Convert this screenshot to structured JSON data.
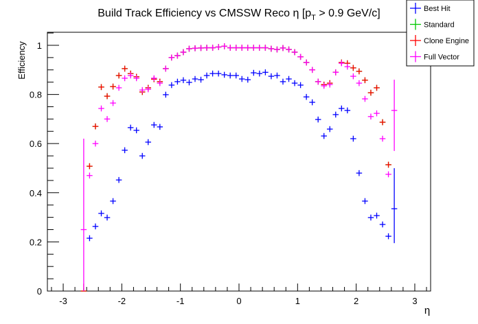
{
  "chart_data": {
    "type": "scatter",
    "title": "Build Track Efficiency vs CMSSW Reco η [p",
    "title_sub": "T",
    "title_tail": " > 0.9 GeV/c]",
    "xlabel": "η",
    "ylabel": "Efficiency",
    "xlim": [
      -3.27,
      3.27
    ],
    "ylim": [
      0,
      1.053
    ],
    "xticks": [
      -3,
      -2,
      -1,
      0,
      1,
      2,
      3
    ],
    "xtick_labels": [
      "-3",
      "-2",
      "-1",
      "0",
      "1",
      "2",
      "3"
    ],
    "yticks": [
      0,
      0.2,
      0.4,
      0.6,
      0.8,
      1
    ],
    "ytick_labels": [
      "0",
      "0.2",
      "0.4",
      "0.6",
      "0.8",
      "1"
    ],
    "grid": false,
    "legend_position": "top-right",
    "bin_width": 0.1,
    "x": [
      -2.65,
      -2.55,
      -2.45,
      -2.35,
      -2.25,
      -2.15,
      -2.05,
      -1.95,
      -1.85,
      -1.75,
      -1.65,
      -1.55,
      -1.45,
      -1.35,
      -1.25,
      -1.15,
      -1.05,
      -0.95,
      -0.85,
      -0.75,
      -0.65,
      -0.55,
      -0.45,
      -0.35,
      -0.25,
      -0.15,
      -0.05,
      0.05,
      0.15,
      0.25,
      0.35,
      0.45,
      0.55,
      0.65,
      0.75,
      0.85,
      0.95,
      1.05,
      1.15,
      1.25,
      1.35,
      1.45,
      1.55,
      1.65,
      1.75,
      1.85,
      1.95,
      2.05,
      2.15,
      2.25,
      2.35,
      2.45,
      2.55,
      2.65
    ],
    "series": [
      {
        "name": "Best Hit",
        "color": "#0000ff",
        "values": [
          null,
          0.215,
          0.263,
          0.316,
          0.299,
          0.366,
          0.452,
          0.573,
          0.665,
          0.654,
          0.55,
          0.606,
          0.676,
          0.668,
          0.799,
          0.838,
          0.852,
          0.858,
          0.849,
          0.863,
          0.86,
          0.877,
          0.885,
          0.885,
          0.88,
          0.877,
          0.877,
          0.863,
          0.86,
          0.888,
          0.885,
          0.89,
          0.874,
          0.877,
          0.852,
          0.863,
          0.846,
          0.838,
          0.79,
          0.768,
          0.698,
          0.631,
          0.659,
          0.718,
          0.743,
          0.735,
          0.62,
          0.48,
          0.366,
          0.299,
          0.307,
          0.271,
          0.223,
          0.335
        ],
        "big_errors": {
          "2.65": [
            0.195,
            0.5
          ]
        }
      },
      {
        "name": "Standard",
        "color": "#00c800",
        "values": [
          0,
          0.508,
          0.67,
          0.83,
          0.793,
          0.832,
          0.877,
          0.905,
          0.885,
          0.872,
          0.81,
          0.827,
          0.862,
          0.852,
          0.905,
          0.95,
          0.958,
          0.972,
          0.986,
          0.988,
          0.989,
          0.99,
          0.99,
          0.993,
          0.996,
          0.99,
          0.99,
          0.99,
          0.99,
          0.99,
          0.99,
          0.99,
          0.986,
          0.983,
          0.989,
          0.983,
          0.972,
          0.953,
          0.93,
          0.9,
          0.852,
          0.84,
          0.846,
          0.89,
          0.93,
          0.927,
          0.908,
          0.894,
          0.858,
          0.807,
          0.827,
          0.687,
          0.514,
          null
        ],
        "big_errors": {}
      },
      {
        "name": "Clone Engine",
        "color": "#ff0000",
        "values": [
          0,
          0.508,
          0.67,
          0.83,
          0.793,
          0.832,
          0.877,
          0.905,
          0.885,
          0.872,
          0.81,
          0.827,
          0.862,
          0.852,
          0.905,
          0.95,
          0.958,
          0.972,
          0.986,
          0.988,
          0.989,
          0.99,
          0.99,
          0.993,
          0.996,
          0.99,
          0.99,
          0.99,
          0.99,
          0.99,
          0.99,
          0.99,
          0.986,
          0.983,
          0.989,
          0.983,
          0.972,
          0.953,
          0.93,
          0.9,
          0.852,
          0.84,
          0.846,
          0.89,
          0.93,
          0.927,
          0.908,
          0.894,
          0.858,
          0.807,
          0.827,
          0.687,
          0.514,
          null
        ],
        "big_errors": {
          "-2.65": [
            0,
            0.03
          ]
        }
      },
      {
        "name": "Full Vector",
        "color": "#ff00ff",
        "values": [
          0.25,
          0.47,
          0.6,
          0.743,
          0.7,
          0.765,
          0.827,
          0.866,
          0.877,
          0.866,
          0.818,
          0.821,
          0.866,
          0.846,
          0.905,
          0.95,
          0.958,
          0.972,
          0.986,
          0.988,
          0.989,
          0.99,
          0.99,
          0.993,
          0.996,
          0.99,
          0.99,
          0.99,
          0.99,
          0.99,
          0.99,
          0.99,
          0.986,
          0.983,
          0.989,
          0.983,
          0.972,
          0.953,
          0.93,
          0.9,
          0.852,
          0.835,
          0.84,
          0.89,
          0.927,
          0.913,
          0.874,
          0.846,
          0.782,
          0.71,
          0.723,
          0.62,
          0.475,
          0.735
        ],
        "big_errors": {
          "-2.65": [
            0,
            0.62
          ],
          "2.65": [
            0.57,
            0.86
          ]
        }
      }
    ]
  }
}
